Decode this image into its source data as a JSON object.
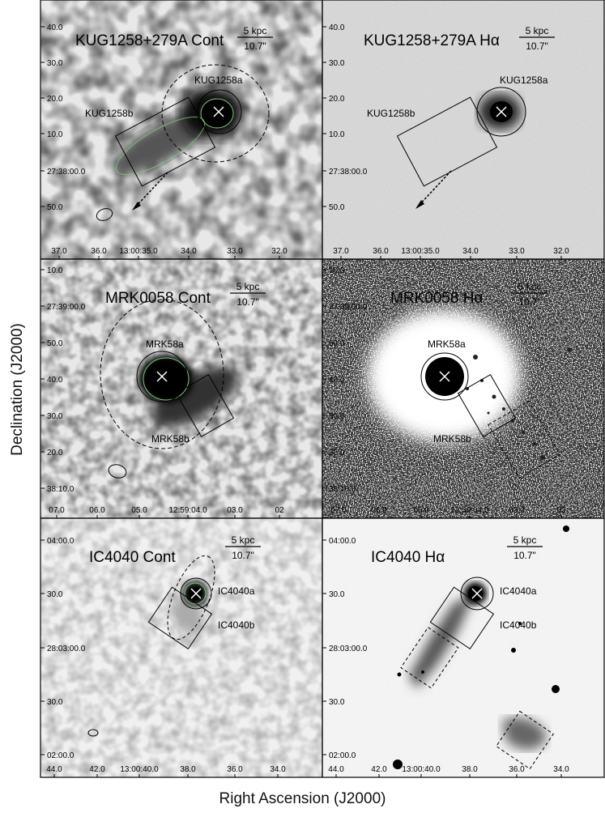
{
  "figure": {
    "xlabel": "Right Ascension (J2000)",
    "ylabel": "Declination (J2000)",
    "scalebar": {
      "kpc": "5 kpc",
      "arcsec": "10.7\""
    }
  },
  "panels": [
    {
      "id": "kug-cont",
      "title": "KUG1258+279A Cont",
      "type": "cont",
      "yticks": [
        "40.0",
        "30.0",
        "20.0",
        "10.0",
        "27:38:00.0",
        "50.0"
      ],
      "xticks": [
        "37.0",
        "36.0",
        "13:00:35.0",
        "34.0",
        "33.0",
        "32.0"
      ],
      "labels": [
        "KUG1258a",
        "KUG1258b"
      ]
    },
    {
      "id": "kug-ha",
      "title": "KUG1258+279A Hα",
      "type": "ha",
      "yticks": [
        "40.0",
        "30.0",
        "20.0",
        "10.0",
        "27:38:00.0",
        "50.0"
      ],
      "xticks": [
        "37.0",
        "36.0",
        "13:00:35.0",
        "34.0",
        "33.0",
        "32.0"
      ],
      "labels": [
        "KUG1258a",
        "KUG1258b"
      ]
    },
    {
      "id": "mrk-cont",
      "title": "MRK0058 Cont",
      "type": "cont",
      "yticks": [
        "10.0",
        "27:39:00.0",
        "50.0",
        "40.0",
        "30.0",
        "20.0",
        "38:10.0"
      ],
      "xticks": [
        "07.0",
        "06.0",
        "05.0",
        "12:59:04.0",
        "03.0",
        "02"
      ],
      "labels": [
        "MRK58a",
        "MRK58b"
      ]
    },
    {
      "id": "mrk-ha",
      "title": "MRK0058 Hα",
      "type": "ha",
      "yticks": [
        "10.0",
        "27:39:00.0",
        "50.0",
        "40.0",
        "30.0",
        "20.0",
        "38:10.0"
      ],
      "xticks": [
        "07.0",
        "06.0",
        "05.0",
        "12:59:04.0",
        "03.0",
        "02"
      ],
      "labels": [
        "MRK58a",
        "MRK58b"
      ]
    },
    {
      "id": "ic-cont",
      "title": "IC4040 Cont",
      "type": "cont",
      "yticks": [
        "04:00.0",
        "30.0",
        "28:03:00.0",
        "30.0",
        "02:00.0"
      ],
      "xticks": [
        "44.0",
        "42.0",
        "13:00:40.0",
        "38.0",
        "36.0",
        "34.0"
      ],
      "labels": [
        "IC4040a",
        "IC4040b"
      ]
    },
    {
      "id": "ic-ha",
      "title": "IC4040 Hα",
      "type": "ha",
      "yticks": [
        "04:00.0",
        "30.0",
        "28:03:00.0",
        "30.0",
        "02:00.0"
      ],
      "xticks": [
        "44.0",
        "42.0",
        "13:00:40.0",
        "38.0",
        "36.0",
        "34.0"
      ],
      "labels": [
        "IC4040a",
        "IC4040b"
      ]
    }
  ]
}
